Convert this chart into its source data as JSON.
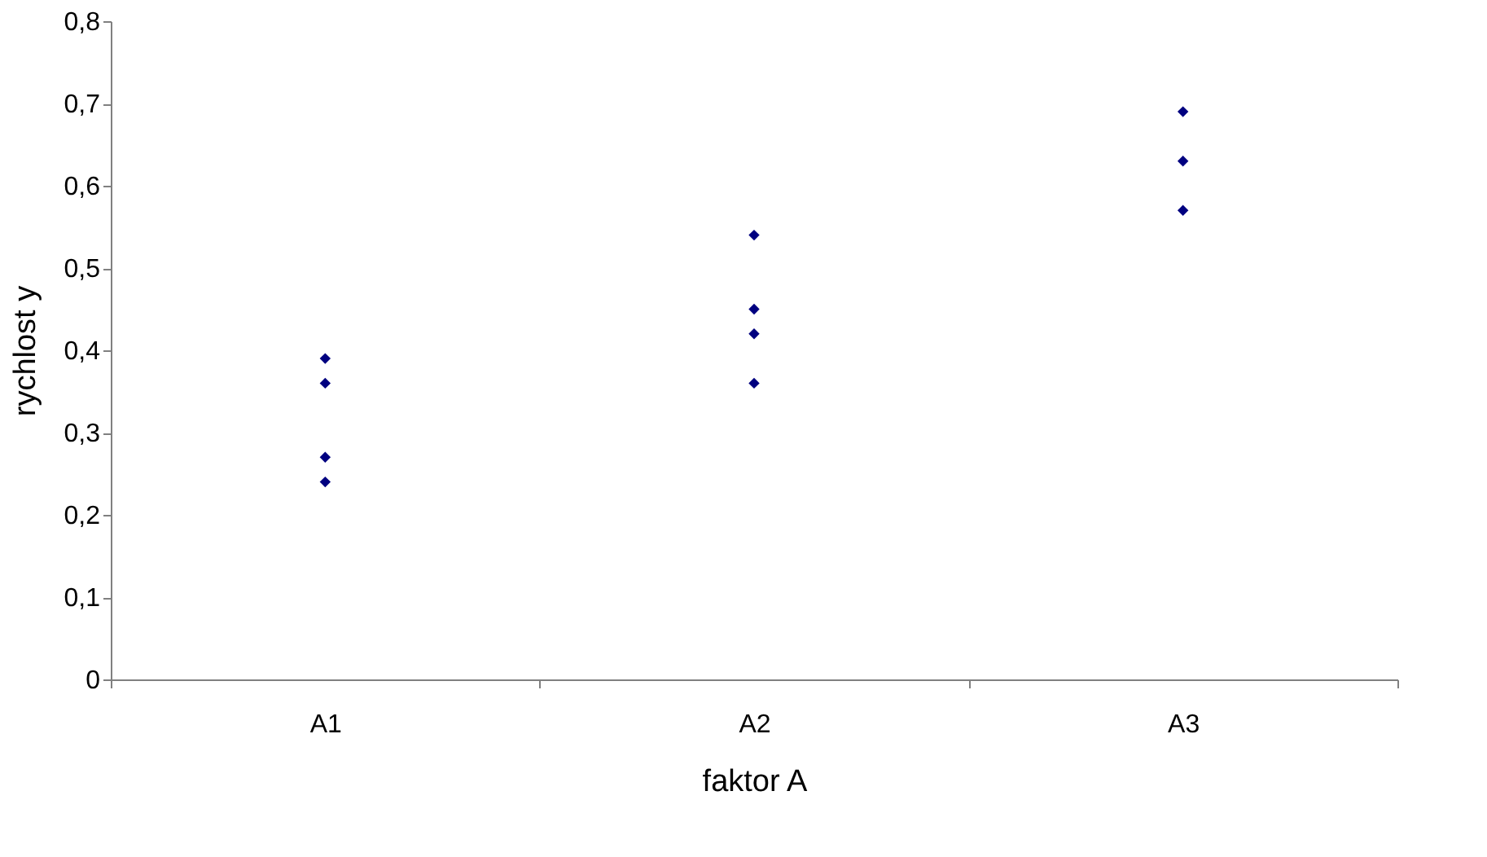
{
  "chart_data": {
    "type": "scatter",
    "xlabel": "faktor A",
    "ylabel": "rychlost y",
    "categories": [
      "A1",
      "A2",
      "A3"
    ],
    "series": [
      {
        "color": "#000080",
        "x": [
          "A1",
          "A1",
          "A1",
          "A1",
          "A2",
          "A2",
          "A2",
          "A2",
          "A3",
          "A3",
          "A3"
        ],
        "values": [
          0.39,
          0.36,
          0.27,
          0.24,
          0.54,
          0.45,
          0.42,
          0.36,
          0.69,
          0.63,
          0.57
        ]
      }
    ],
    "ylim": [
      0,
      0.8
    ],
    "yticks": [
      {
        "value": 0,
        "label": "0"
      },
      {
        "value": 0.1,
        "label": "0,1"
      },
      {
        "value": 0.2,
        "label": "0,2"
      },
      {
        "value": 0.3,
        "label": "0,3"
      },
      {
        "value": 0.4,
        "label": "0,4"
      },
      {
        "value": 0.5,
        "label": "0,5"
      },
      {
        "value": 0.6,
        "label": "0,6"
      },
      {
        "value": 0.7,
        "label": "0,7"
      },
      {
        "value": 0.8,
        "label": "0,8"
      }
    ],
    "grid": false,
    "marker": "diamond"
  }
}
